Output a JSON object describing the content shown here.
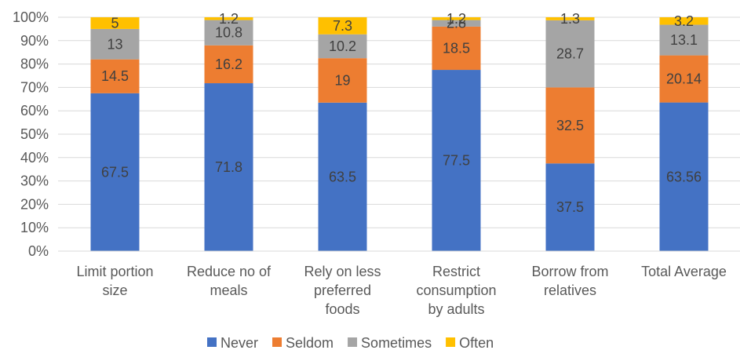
{
  "chart_data": {
    "type": "bar",
    "stacked": "percent",
    "categories": [
      [
        "Limit portion",
        "size"
      ],
      [
        "Reduce no of",
        "meals"
      ],
      [
        "Rely on less",
        "preferred",
        "foods"
      ],
      [
        "Restrict",
        "consumption",
        "by adults"
      ],
      [
        "Borrow from",
        "relatives"
      ],
      [
        "Total Average"
      ]
    ],
    "series": [
      {
        "name": "Never",
        "color": "#4472C4",
        "values": [
          67.5,
          71.8,
          63.5,
          77.5,
          37.5,
          63.56
        ],
        "labels": [
          "67.5",
          "71.8",
          "63.5",
          "77.5",
          "37.5",
          "63.56"
        ]
      },
      {
        "name": "Seldom",
        "color": "#ED7D31",
        "values": [
          14.5,
          16.2,
          19,
          18.5,
          32.5,
          20.14
        ],
        "labels": [
          "14.5",
          "16.2",
          "19",
          "18.5",
          "32.5",
          "20.14"
        ]
      },
      {
        "name": "Sometimes",
        "color": "#A5A5A5",
        "values": [
          13,
          10.8,
          10.2,
          2.8,
          28.7,
          13.1
        ],
        "labels": [
          "13",
          "10.8",
          "10.2",
          "2.8",
          "28.7",
          "13.1"
        ]
      },
      {
        "name": "Often",
        "color": "#FFC000",
        "values": [
          5,
          1.2,
          7.3,
          1.2,
          1.3,
          3.2
        ],
        "labels": [
          "5",
          "1.2",
          "7.3",
          "1.2",
          "1.3",
          "3.2"
        ]
      }
    ],
    "yticks": [
      "0%",
      "10%",
      "20%",
      "30%",
      "40%",
      "50%",
      "60%",
      "70%",
      "80%",
      "90%",
      "100%"
    ],
    "ylim": [
      0,
      100
    ],
    "grid": true,
    "legend": "bottom",
    "gridline_color": "#D9D9D9"
  }
}
